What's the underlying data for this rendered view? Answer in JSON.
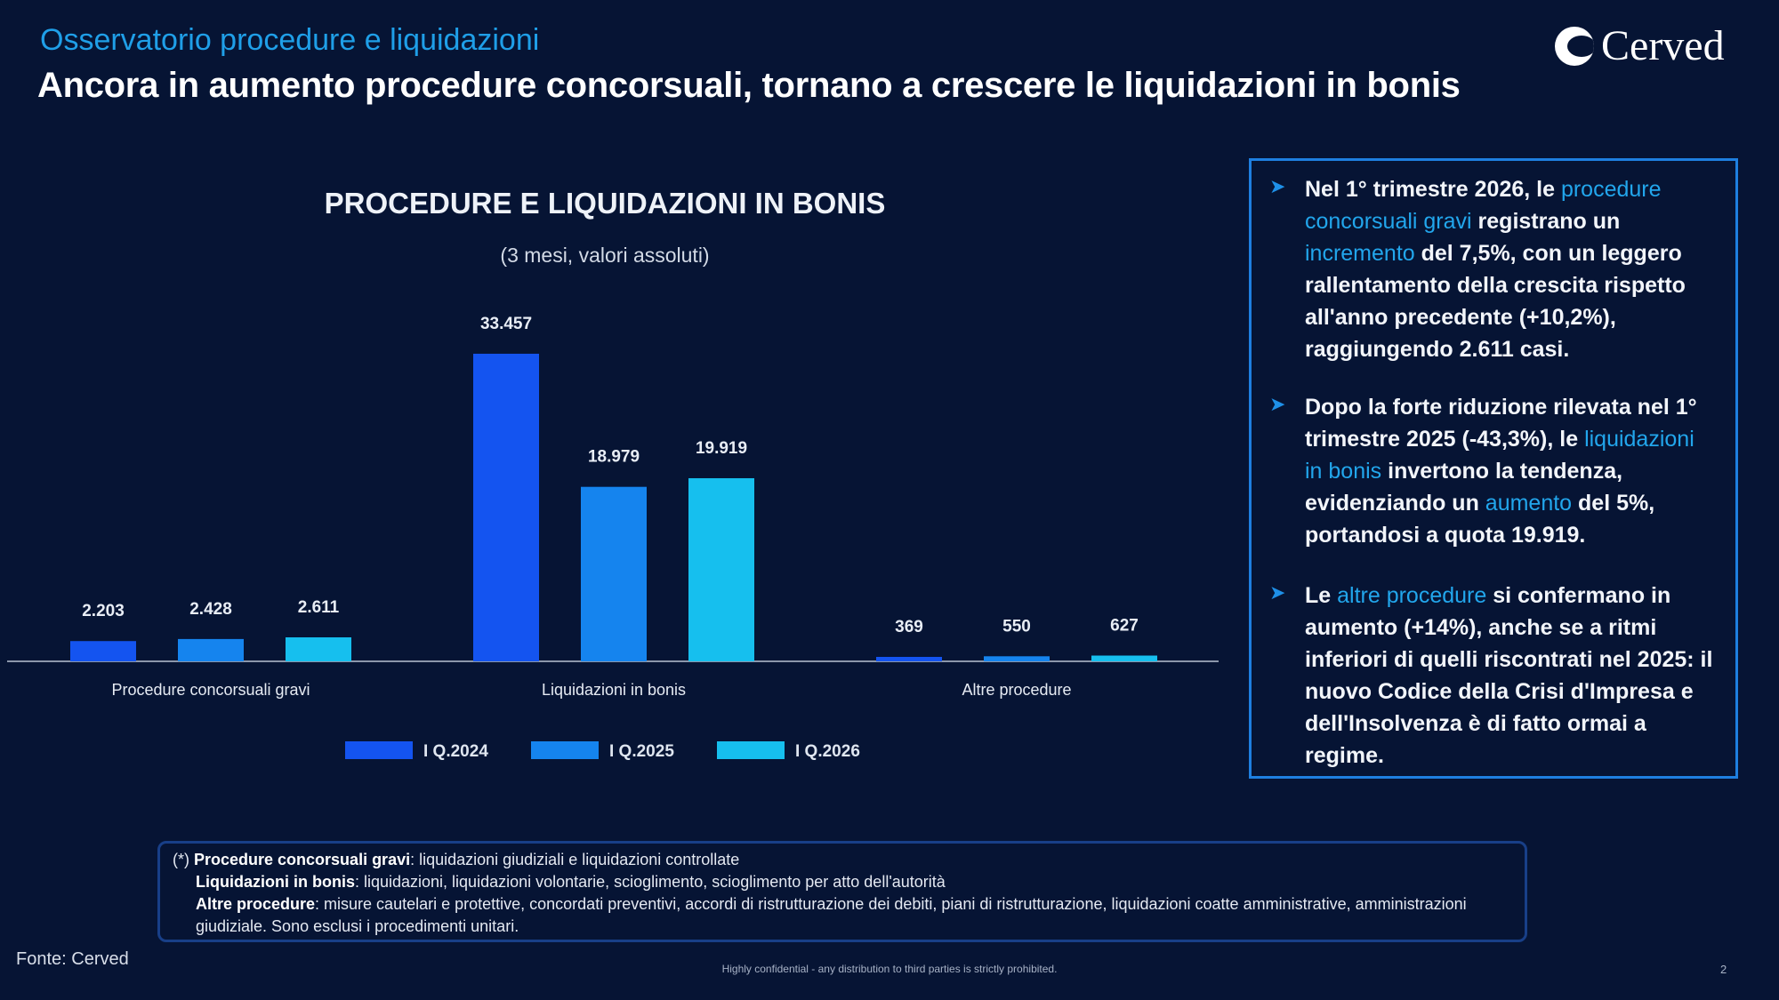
{
  "header": {
    "kicker": "Osservatorio procedure e liquidazioni",
    "headline": "Ancora in aumento procedure concorsuali, tornano  a crescere le liquidazioni in bonis",
    "logo_text": "Cerved"
  },
  "chart_data": {
    "type": "bar",
    "title": "PROCEDURE E LIQUIDAZIONI IN BONIS",
    "subtitle": "(3 mesi, valori assoluti)",
    "categories": [
      "Procedure concorsuali gravi",
      "Liquidazioni in bonis",
      "Altre procedure"
    ],
    "series": [
      {
        "name": "I Q.2024",
        "values": [
          2203,
          33457,
          369
        ],
        "labels": [
          "2.203",
          "33.457",
          "369"
        ],
        "color": "#1454f0"
      },
      {
        "name": "I Q.2025",
        "values": [
          2428,
          18979,
          550
        ],
        "labels": [
          "2.428",
          "18.979",
          "550"
        ],
        "color": "#1584ee"
      },
      {
        "name": "I Q.2026",
        "values": [
          2611,
          19919,
          627
        ],
        "labels": [
          "2.611",
          "19.919",
          "627"
        ],
        "color": "#16bfee"
      }
    ],
    "ylim": [
      0,
      35000
    ],
    "grid": false,
    "legend_position": "bottom"
  },
  "info": {
    "bullets": [
      [
        {
          "t": "Nel 1° trimestre 2026, le ",
          "h": false
        },
        {
          "t": "procedure concorsuali gravi",
          "h": true
        },
        {
          "t": " registrano un ",
          "h": false
        },
        {
          "t": "incremento",
          "h": true
        },
        {
          "t": " del 7,5%, con un leggero rallentamento della crescita rispetto all'anno precedente (+10,2%), raggiungendo 2.611 casi.",
          "h": false
        }
      ],
      [
        {
          "t": "Dopo la forte riduzione rilevata nel 1° trimestre 2025 (-43,3%), le ",
          "h": false
        },
        {
          "t": "liquidazioni in bonis",
          "h": true
        },
        {
          "t": " invertono la tendenza, evidenziando un ",
          "h": false
        },
        {
          "t": "aumento",
          "h": true
        },
        {
          "t": " del 5%, portandosi a quota 19.919.",
          "h": false
        }
      ],
      [
        {
          "t": "Le ",
          "h": false
        },
        {
          "t": "altre procedure",
          "h": true
        },
        {
          "t": "  si confermano in aumento (+14%), anche se a ritmi inferiori di quelli riscontrati nel 2025: il nuovo Codice della Crisi d'Impresa e dell'Insolvenza è di fatto ormai a regime.",
          "h": false
        }
      ]
    ]
  },
  "notes": {
    "prefix": "(*) ",
    "lines": [
      {
        "label": "Procedure concorsuali gravi",
        "text": ": liquidazioni giudiziali e liquidazioni controllate"
      },
      {
        "label": "Liquidazioni in bonis",
        "text": ": liquidazioni, liquidazioni volontarie, scioglimento, scioglimento per atto dell'autorità"
      },
      {
        "label": "Altre procedure",
        "text": ": misure cautelari e protettive, concordati preventivi, accordi di ristrutturazione dei debiti, piani di ristrutturazione, liquidazioni coatte amministrative, amministrazioni giudiziale. Sono esclusi i procedimenti unitari."
      }
    ]
  },
  "footer": {
    "source": "Fonte: Cerved",
    "confidential": "Highly confidential - any distribution to third parties is strictly prohibited.",
    "page": "2"
  }
}
